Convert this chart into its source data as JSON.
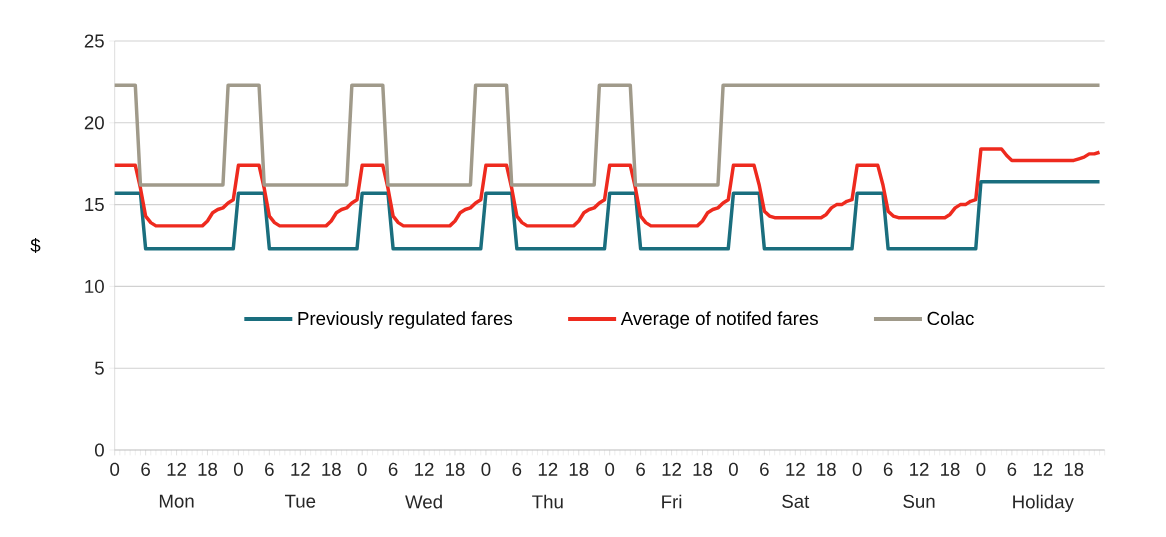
{
  "chart_data": {
    "type": "line",
    "ylabel": "$",
    "ylim": [
      0,
      25
    ],
    "yticks": [
      0,
      5,
      10,
      15,
      20,
      25
    ],
    "categories": [
      "0",
      null,
      null,
      null,
      null,
      null,
      "6",
      null,
      null,
      null,
      null,
      null,
      "12",
      null,
      null,
      null,
      null,
      null,
      "18",
      null,
      null,
      null,
      null,
      null,
      "0",
      null,
      null,
      null,
      null,
      null,
      "6",
      null,
      null,
      null,
      null,
      null,
      "12",
      null,
      null,
      null,
      null,
      null,
      "18",
      null,
      null,
      null,
      null,
      null,
      "0",
      null,
      null,
      null,
      null,
      null,
      "6",
      null,
      null,
      null,
      null,
      null,
      "12",
      null,
      null,
      null,
      null,
      null,
      "18",
      null,
      null,
      null,
      null,
      null,
      "0",
      null,
      null,
      null,
      null,
      null,
      "6",
      null,
      null,
      null,
      null,
      null,
      "12",
      null,
      null,
      null,
      null,
      null,
      "18",
      null,
      null,
      null,
      null,
      null,
      "0",
      null,
      null,
      null,
      null,
      null,
      "6",
      null,
      null,
      null,
      null,
      null,
      "12",
      null,
      null,
      null,
      null,
      null,
      "18",
      null,
      null,
      null,
      null,
      null,
      "0",
      null,
      null,
      null,
      null,
      null,
      "6",
      null,
      null,
      null,
      null,
      null,
      "12",
      null,
      null,
      null,
      null,
      null,
      "18",
      null,
      null,
      null,
      null,
      null,
      "0",
      null,
      null,
      null,
      null,
      null,
      "6",
      null,
      null,
      null,
      null,
      null,
      "12",
      null,
      null,
      null,
      null,
      null,
      "18",
      null,
      null,
      null,
      null,
      null,
      "0",
      null,
      null,
      null,
      null,
      null,
      "6",
      null,
      null,
      null,
      null,
      null,
      "12",
      null,
      null,
      null,
      null,
      null,
      "18",
      null,
      null,
      null,
      null,
      null
    ],
    "annotations": [
      "Mon",
      "Tue",
      "Wed",
      "Thu",
      "Fri",
      "Sat",
      "Sun",
      "Holiday"
    ],
    "grid": "y",
    "legend": "center",
    "marker": "none",
    "line_style": "solid",
    "series": [
      {
        "name": "Previously regulated fares",
        "color": "#1a6e7e",
        "values": [
          15.7,
          15.7,
          15.7,
          15.7,
          15.7,
          15.7,
          12.3,
          12.3,
          12.3,
          12.3,
          12.3,
          12.3,
          12.3,
          12.3,
          12.3,
          12.3,
          12.3,
          12.3,
          12.3,
          12.3,
          12.3,
          12.3,
          12.3,
          12.3,
          15.7,
          15.7,
          15.7,
          15.7,
          15.7,
          15.7,
          12.3,
          12.3,
          12.3,
          12.3,
          12.3,
          12.3,
          12.3,
          12.3,
          12.3,
          12.3,
          12.3,
          12.3,
          12.3,
          12.3,
          12.3,
          12.3,
          12.3,
          12.3,
          15.7,
          15.7,
          15.7,
          15.7,
          15.7,
          15.7,
          12.3,
          12.3,
          12.3,
          12.3,
          12.3,
          12.3,
          12.3,
          12.3,
          12.3,
          12.3,
          12.3,
          12.3,
          12.3,
          12.3,
          12.3,
          12.3,
          12.3,
          12.3,
          15.7,
          15.7,
          15.7,
          15.7,
          15.7,
          15.7,
          12.3,
          12.3,
          12.3,
          12.3,
          12.3,
          12.3,
          12.3,
          12.3,
          12.3,
          12.3,
          12.3,
          12.3,
          12.3,
          12.3,
          12.3,
          12.3,
          12.3,
          12.3,
          15.7,
          15.7,
          15.7,
          15.7,
          15.7,
          15.7,
          12.3,
          12.3,
          12.3,
          12.3,
          12.3,
          12.3,
          12.3,
          12.3,
          12.3,
          12.3,
          12.3,
          12.3,
          12.3,
          12.3,
          12.3,
          12.3,
          12.3,
          12.3,
          15.7,
          15.7,
          15.7,
          15.7,
          15.7,
          15.7,
          12.3,
          12.3,
          12.3,
          12.3,
          12.3,
          12.3,
          12.3,
          12.3,
          12.3,
          12.3,
          12.3,
          12.3,
          12.3,
          12.3,
          12.3,
          12.3,
          12.3,
          12.3,
          15.7,
          15.7,
          15.7,
          15.7,
          15.7,
          15.7,
          12.3,
          12.3,
          12.3,
          12.3,
          12.3,
          12.3,
          12.3,
          12.3,
          12.3,
          12.3,
          12.3,
          12.3,
          12.3,
          12.3,
          12.3,
          12.3,
          12.3,
          12.3,
          16.4,
          16.4,
          16.4,
          16.4,
          16.4,
          16.4,
          16.4,
          16.4,
          16.4,
          16.4,
          16.4,
          16.4,
          16.4,
          16.4,
          16.4,
          16.4,
          16.4,
          16.4,
          16.4,
          16.4,
          16.4,
          16.4,
          16.4,
          16.4
        ]
      },
      {
        "name": "Average of notifed fares",
        "color": "#ee2a1e",
        "values": [
          17.4,
          17.4,
          17.4,
          17.4,
          17.4,
          16.0,
          14.3,
          13.9,
          13.7,
          13.7,
          13.7,
          13.7,
          13.7,
          13.7,
          13.7,
          13.7,
          13.7,
          13.7,
          14.0,
          14.5,
          14.7,
          14.8,
          15.1,
          15.3,
          17.4,
          17.4,
          17.4,
          17.4,
          17.4,
          16.0,
          14.3,
          13.9,
          13.7,
          13.7,
          13.7,
          13.7,
          13.7,
          13.7,
          13.7,
          13.7,
          13.7,
          13.7,
          14.0,
          14.5,
          14.7,
          14.8,
          15.1,
          15.3,
          17.4,
          17.4,
          17.4,
          17.4,
          17.4,
          16.0,
          14.3,
          13.9,
          13.7,
          13.7,
          13.7,
          13.7,
          13.7,
          13.7,
          13.7,
          13.7,
          13.7,
          13.7,
          14.0,
          14.5,
          14.7,
          14.8,
          15.1,
          15.3,
          17.4,
          17.4,
          17.4,
          17.4,
          17.4,
          16.0,
          14.3,
          13.9,
          13.7,
          13.7,
          13.7,
          13.7,
          13.7,
          13.7,
          13.7,
          13.7,
          13.7,
          13.7,
          14.0,
          14.5,
          14.7,
          14.8,
          15.1,
          15.3,
          17.4,
          17.4,
          17.4,
          17.4,
          17.4,
          16.0,
          14.3,
          13.9,
          13.7,
          13.7,
          13.7,
          13.7,
          13.7,
          13.7,
          13.7,
          13.7,
          13.7,
          13.7,
          14.0,
          14.5,
          14.7,
          14.8,
          15.1,
          15.3,
          17.4,
          17.4,
          17.4,
          17.4,
          17.4,
          16.2,
          14.6,
          14.3,
          14.2,
          14.2,
          14.2,
          14.2,
          14.2,
          14.2,
          14.2,
          14.2,
          14.2,
          14.2,
          14.4,
          14.8,
          15.0,
          15.0,
          15.2,
          15.3,
          17.4,
          17.4,
          17.4,
          17.4,
          17.4,
          16.2,
          14.6,
          14.3,
          14.2,
          14.2,
          14.2,
          14.2,
          14.2,
          14.2,
          14.2,
          14.2,
          14.2,
          14.2,
          14.4,
          14.8,
          15.0,
          15.0,
          15.2,
          15.3,
          18.4,
          18.4,
          18.4,
          18.4,
          18.4,
          18.0,
          17.7,
          17.7,
          17.7,
          17.7,
          17.7,
          17.7,
          17.7,
          17.7,
          17.7,
          17.7,
          17.7,
          17.7,
          17.7,
          17.8,
          17.9,
          18.1,
          18.1,
          18.2
        ]
      },
      {
        "name": "Colac",
        "color": "#a09a8a",
        "values": [
          22.3,
          22.3,
          22.3,
          22.3,
          22.3,
          16.2,
          16.2,
          16.2,
          16.2,
          16.2,
          16.2,
          16.2,
          16.2,
          16.2,
          16.2,
          16.2,
          16.2,
          16.2,
          16.2,
          16.2,
          16.2,
          16.2,
          22.3,
          22.3,
          22.3,
          22.3,
          22.3,
          22.3,
          22.3,
          16.2,
          16.2,
          16.2,
          16.2,
          16.2,
          16.2,
          16.2,
          16.2,
          16.2,
          16.2,
          16.2,
          16.2,
          16.2,
          16.2,
          16.2,
          16.2,
          16.2,
          22.3,
          22.3,
          22.3,
          22.3,
          22.3,
          22.3,
          22.3,
          16.2,
          16.2,
          16.2,
          16.2,
          16.2,
          16.2,
          16.2,
          16.2,
          16.2,
          16.2,
          16.2,
          16.2,
          16.2,
          16.2,
          16.2,
          16.2,
          16.2,
          22.3,
          22.3,
          22.3,
          22.3,
          22.3,
          22.3,
          22.3,
          16.2,
          16.2,
          16.2,
          16.2,
          16.2,
          16.2,
          16.2,
          16.2,
          16.2,
          16.2,
          16.2,
          16.2,
          16.2,
          16.2,
          16.2,
          16.2,
          16.2,
          22.3,
          22.3,
          22.3,
          22.3,
          22.3,
          22.3,
          22.3,
          16.2,
          16.2,
          16.2,
          16.2,
          16.2,
          16.2,
          16.2,
          16.2,
          16.2,
          16.2,
          16.2,
          16.2,
          16.2,
          16.2,
          16.2,
          16.2,
          16.2,
          22.3,
          22.3,
          22.3,
          22.3,
          22.3,
          22.3,
          22.3,
          22.3,
          22.3,
          22.3,
          22.3,
          22.3,
          22.3,
          22.3,
          22.3,
          22.3,
          22.3,
          22.3,
          22.3,
          22.3,
          22.3,
          22.3,
          22.3,
          22.3,
          22.3,
          22.3,
          22.3,
          22.3,
          22.3,
          22.3,
          22.3,
          22.3,
          22.3,
          22.3,
          22.3,
          22.3,
          22.3,
          22.3,
          22.3,
          22.3,
          22.3,
          22.3,
          22.3,
          22.3,
          22.3,
          22.3,
          22.3,
          22.3,
          22.3,
          22.3,
          22.3,
          22.3,
          22.3,
          22.3,
          22.3,
          22.3,
          22.3,
          22.3,
          22.3,
          22.3,
          22.3,
          22.3,
          22.3,
          22.3,
          22.3,
          22.3,
          22.3,
          22.3,
          22.3,
          22.3,
          22.3,
          22.3,
          22.3,
          22.3
        ]
      }
    ]
  }
}
